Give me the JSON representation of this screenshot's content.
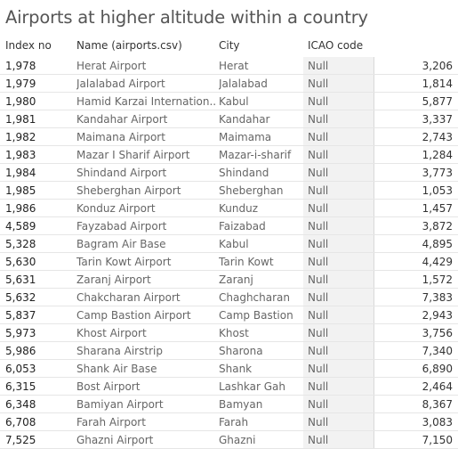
{
  "chart_data": {
    "type": "table",
    "title": "Airports at higher altitude within a country",
    "columns": [
      "Index no",
      "Name (airports.csv)",
      "City",
      "ICAO code",
      ""
    ],
    "rows": [
      {
        "index": "1,978",
        "name": "Herat Airport",
        "city": "Herat",
        "icao": "Null",
        "value": "3,206"
      },
      {
        "index": "1,979",
        "name": "Jalalabad Airport",
        "city": "Jalalabad",
        "icao": "Null",
        "value": "1,814"
      },
      {
        "index": "1,980",
        "name": "Hamid Karzai Internation..",
        "city": "Kabul",
        "icao": "Null",
        "value": "5,877"
      },
      {
        "index": "1,981",
        "name": "Kandahar Airport",
        "city": "Kandahar",
        "icao": "Null",
        "value": "3,337"
      },
      {
        "index": "1,982",
        "name": "Maimana Airport",
        "city": "Maimama",
        "icao": "Null",
        "value": "2,743"
      },
      {
        "index": "1,983",
        "name": "Mazar I Sharif Airport",
        "city": "Mazar-i-sharif",
        "icao": "Null",
        "value": "1,284"
      },
      {
        "index": "1,984",
        "name": "Shindand Airport",
        "city": "Shindand",
        "icao": "Null",
        "value": "3,773"
      },
      {
        "index": "1,985",
        "name": "Sheberghan Airport",
        "city": "Sheberghan",
        "icao": "Null",
        "value": "1,053"
      },
      {
        "index": "1,986",
        "name": "Konduz Airport",
        "city": "Kunduz",
        "icao": "Null",
        "value": "1,457"
      },
      {
        "index": "4,589",
        "name": "Fayzabad Airport",
        "city": "Faizabad",
        "icao": "Null",
        "value": "3,872"
      },
      {
        "index": "5,328",
        "name": "Bagram Air Base",
        "city": "Kabul",
        "icao": "Null",
        "value": "4,895"
      },
      {
        "index": "5,630",
        "name": "Tarin Kowt Airport",
        "city": "Tarin Kowt",
        "icao": "Null",
        "value": "4,429"
      },
      {
        "index": "5,631",
        "name": "Zaranj Airport",
        "city": "Zaranj",
        "icao": "Null",
        "value": "1,572"
      },
      {
        "index": "5,632",
        "name": "Chakcharan Airport",
        "city": "Chaghcharan",
        "icao": "Null",
        "value": "7,383"
      },
      {
        "index": "5,837",
        "name": "Camp Bastion Airport",
        "city": "Camp Bastion",
        "icao": "Null",
        "value": "2,943"
      },
      {
        "index": "5,973",
        "name": "Khost Airport",
        "city": "Khost",
        "icao": "Null",
        "value": "3,756"
      },
      {
        "index": "5,986",
        "name": "Sharana Airstrip",
        "city": "Sharona",
        "icao": "Null",
        "value": "7,340"
      },
      {
        "index": "6,053",
        "name": "Shank Air Base",
        "city": "Shank",
        "icao": "Null",
        "value": "6,890"
      },
      {
        "index": "6,315",
        "name": "Bost Airport",
        "city": "Lashkar Gah",
        "icao": "Null",
        "value": "2,464"
      },
      {
        "index": "6,348",
        "name": "Bamiyan Airport",
        "city": "Bamyan",
        "icao": "Null",
        "value": "8,367"
      },
      {
        "index": "6,708",
        "name": "Farah Airport",
        "city": "Farah",
        "icao": "Null",
        "value": "3,083"
      },
      {
        "index": "7,525",
        "name": "Ghazni Airport",
        "city": "Ghazni",
        "icao": "Null",
        "value": "7,150"
      }
    ]
  }
}
